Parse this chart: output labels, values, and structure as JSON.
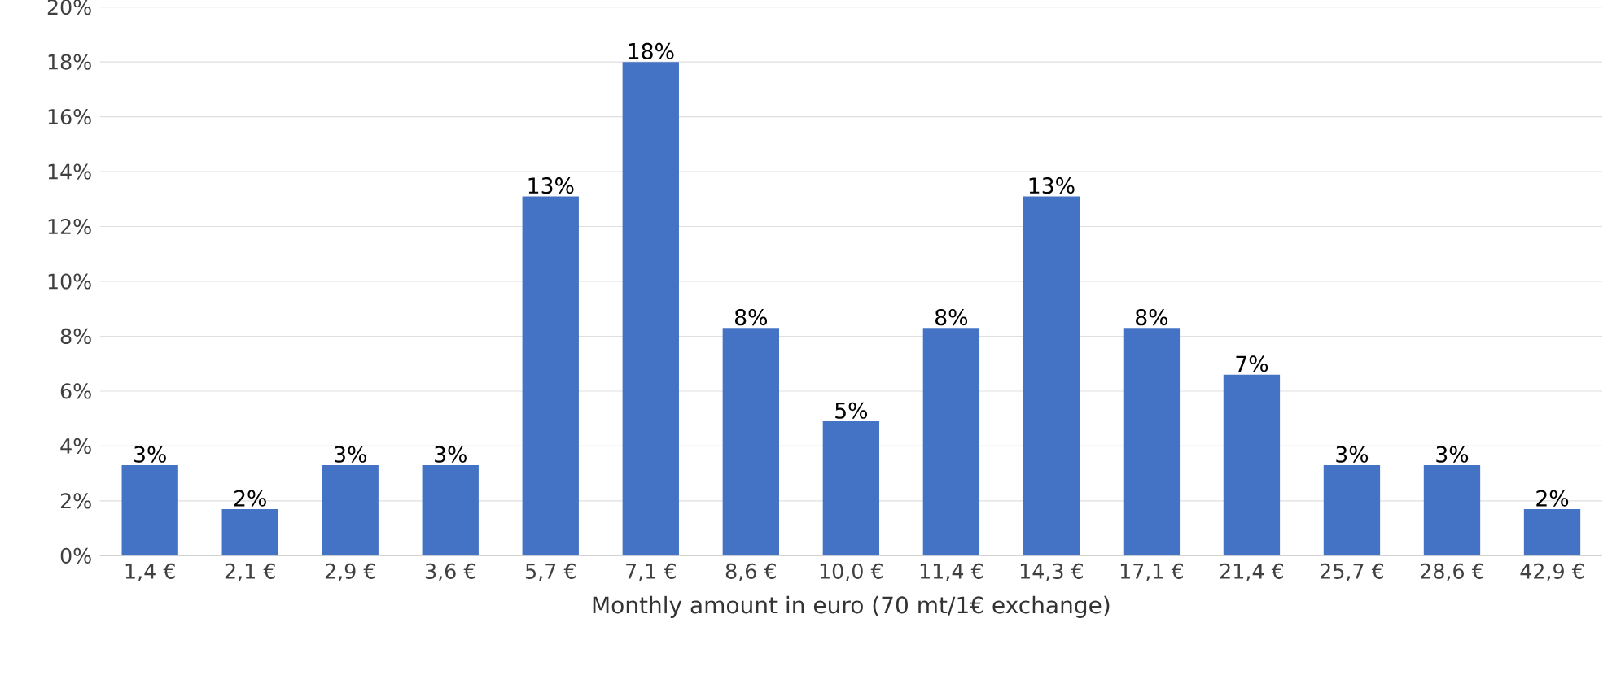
{
  "chart_data": {
    "type": "bar",
    "xlabel": "Monthly amount in euro (70 mt/1€ exchange)",
    "categories": [
      "1,4 €",
      "2,1 €",
      "2,9 €",
      "3,6 €",
      "5,7 €",
      "7,1 €",
      "8,6 €",
      "10,0 €",
      "11,4 €",
      "14,3 €",
      "17,1 €",
      "21,4 €",
      "25,7 €",
      "28,6 €",
      "42,9 €"
    ],
    "values": [
      3.3,
      1.7,
      3.3,
      3.3,
      13.1,
      18.0,
      8.3,
      4.9,
      8.3,
      13.1,
      8.3,
      6.6,
      3.3,
      3.3,
      1.7
    ],
    "value_labels": [
      "3%",
      "2%",
      "3%",
      "3%",
      "13%",
      "18%",
      "8%",
      "5%",
      "8%",
      "13%",
      "8%",
      "7%",
      "3%",
      "3%",
      "2%"
    ],
    "color": "#4472c4",
    "ylim": [
      0,
      20
    ],
    "yticks": [
      {
        "value": 0,
        "label": "0%"
      },
      {
        "value": 2,
        "label": "2%"
      },
      {
        "value": 4,
        "label": "4%"
      },
      {
        "value": 6,
        "label": "6%"
      },
      {
        "value": 8,
        "label": "8%"
      },
      {
        "value": 10,
        "label": "10%"
      },
      {
        "value": 12,
        "label": "12%"
      },
      {
        "value": 14,
        "label": "14%"
      },
      {
        "value": 16,
        "label": "16%"
      },
      {
        "value": 18,
        "label": "18%"
      },
      {
        "value": 20,
        "label": "20%"
      }
    ],
    "grid": "y"
  }
}
